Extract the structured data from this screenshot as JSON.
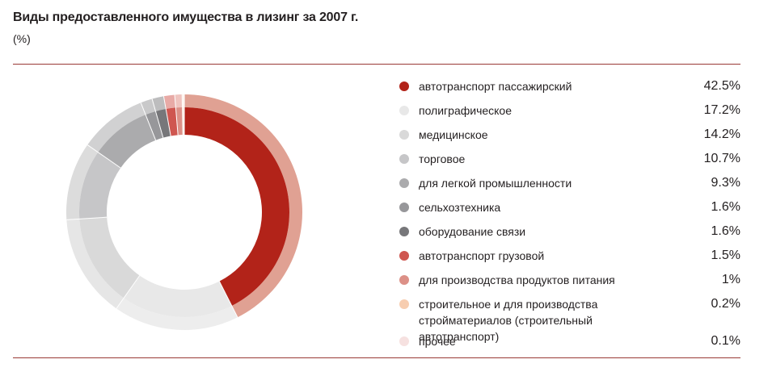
{
  "title": "Виды предоставленного имущества в лизинг за 2007 г.",
  "subtitle": "(%)",
  "chart_data": {
    "type": "pie",
    "title": "Виды предоставленного имущества в лизинг за 2007 г.",
    "unit": "(%)",
    "donut": true,
    "legend_position": "right",
    "slices": [
      {
        "label": "автотранспорт пассажирский",
        "value": 42.5,
        "display": "42.5%",
        "color": "#b22319",
        "outer_color": "#e0a193"
      },
      {
        "label": "полиграфическое",
        "value": 17.2,
        "display": "17.2%",
        "color": "#e8e8e8",
        "outer_color": "#ededed"
      },
      {
        "label": "медицинское",
        "value": 14.2,
        "display": "14.2%",
        "color": "#d9d9d9",
        "outer_color": "#e6e6e6"
      },
      {
        "label": "торговое",
        "value": 10.7,
        "display": "10.7%",
        "color": "#c6c6c8",
        "outer_color": "#dcdcdc"
      },
      {
        "label": "для легкой промышленности",
        "value": 9.3,
        "display": "9.3%",
        "color": "#ababad",
        "outer_color": "#d1d1d2"
      },
      {
        "label": "сельхозтехника",
        "value": 1.6,
        "display": "1.6%",
        "color": "#97979a",
        "outer_color": "#c9c9ca"
      },
      {
        "label": "оборудование связи",
        "value": 1.6,
        "display": "1.6%",
        "color": "#77777a",
        "outer_color": "#bdbdbe"
      },
      {
        "label": "автотранспорт грузовой",
        "value": 1.5,
        "display": "1.5%",
        "color": "#cf5650",
        "outer_color": "#e8aaa6"
      },
      {
        "label": "для производства продуктов питания",
        "value": 1,
        "display": "1%",
        "color": "#dc9087",
        "outer_color": "#efc4bf"
      },
      {
        "label": "строительное и для производства стройматериалов (строительный автотранспорт)",
        "value": 0.2,
        "display": "0.2%",
        "color": "#f7cdb0",
        "outer_color": "#fbe3d3"
      },
      {
        "label": "прочее",
        "value": 0.1,
        "display": "0.1%",
        "color": "#f6e1e0",
        "outer_color": "#fbeeee"
      }
    ]
  }
}
